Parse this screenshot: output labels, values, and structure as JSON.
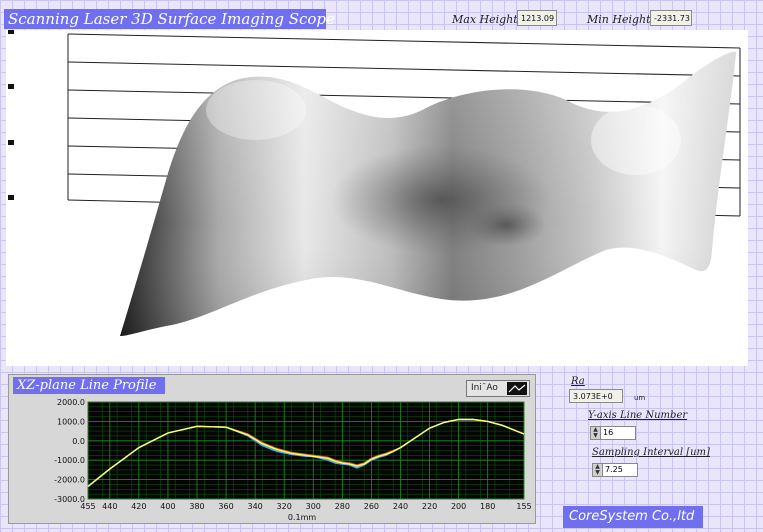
{
  "header": {
    "title": "Scanning Laser 3D  Surface Imaging Scope",
    "max_height_label": "Max Height",
    "max_height_value": "1213.09",
    "min_height_label": "Min Height",
    "min_height_value": "-2331.73"
  },
  "line_profile": {
    "title": "XZ-plane Line Profile",
    "legend_label": "Ini¯Ao"
  },
  "chart_data": {
    "type": "line",
    "xlabel": "0.1mm",
    "ylabel": "",
    "x_ticks": [
      455,
      440,
      420,
      400,
      380,
      360,
      340,
      320,
      300,
      280,
      260,
      240,
      220,
      200,
      180,
      155
    ],
    "y_ticks": [
      "2000.0",
      "1000.0",
      "0.0",
      "-1000.0",
      "-2000.0",
      "-3000.0"
    ],
    "xlim": [
      455,
      155
    ],
    "ylim": [
      -3000,
      2000
    ],
    "grid": true,
    "series": [
      {
        "color": "#ffff66",
        "x": [
          455,
          440,
          420,
          400,
          380,
          360,
          345,
          335,
          325,
          315,
          305,
          300,
          290,
          285,
          280,
          275,
          270,
          265,
          260,
          255,
          250,
          245,
          240,
          230,
          220,
          210,
          200,
          190,
          180,
          170,
          160,
          155
        ],
        "values": [
          -2350,
          -1450,
          -350,
          400,
          750,
          700,
          300,
          -150,
          -450,
          -650,
          -750,
          -800,
          -900,
          -1050,
          -1150,
          -1200,
          -1300,
          -1200,
          -950,
          -800,
          -700,
          -550,
          -350,
          150,
          650,
          950,
          1100,
          1100,
          1000,
          800,
          500,
          350
        ]
      },
      {
        "color": "#4fa3ff",
        "x": [
          455,
          440,
          420,
          400,
          380,
          360,
          345,
          335,
          325,
          315,
          305,
          300,
          290,
          285,
          280,
          275,
          270,
          265,
          260,
          255,
          250,
          245,
          240,
          230,
          220,
          210,
          200,
          190,
          180,
          170,
          160,
          155
        ],
        "values": [
          -2350,
          -1450,
          -350,
          400,
          750,
          700,
          250,
          -250,
          -550,
          -700,
          -800,
          -800,
          -1000,
          -1150,
          -1200,
          -1250,
          -1400,
          -1250,
          -1000,
          -850,
          -750,
          -550,
          -350,
          150,
          650,
          950,
          1100,
          1100,
          1000,
          800,
          500,
          350
        ]
      },
      {
        "color": "#e86a2c",
        "x": [
          455,
          440,
          420,
          400,
          380,
          360,
          345,
          335,
          325,
          315,
          305,
          300,
          290,
          285,
          280,
          275,
          270,
          265,
          260,
          255,
          250,
          245,
          240,
          230,
          220,
          210,
          200,
          190,
          180,
          170,
          160,
          155
        ],
        "values": [
          -2350,
          -1450,
          -350,
          400,
          750,
          700,
          350,
          -100,
          -400,
          -600,
          -700,
          -750,
          -850,
          -1000,
          -1100,
          -1150,
          -1250,
          -1150,
          -900,
          -750,
          -650,
          -500,
          -350,
          150,
          650,
          950,
          1100,
          1100,
          1000,
          800,
          500,
          350
        ]
      },
      {
        "color": "#4cc94c",
        "x": [
          455,
          440,
          420,
          400,
          380,
          360,
          345,
          335,
          325,
          315,
          305,
          300,
          290,
          285,
          280,
          275,
          270,
          265,
          260,
          255,
          250,
          245,
          240,
          230,
          220,
          210,
          200,
          190,
          180,
          170,
          160,
          155
        ],
        "values": [
          -2350,
          -1450,
          -350,
          400,
          750,
          700,
          300,
          -200,
          -500,
          -680,
          -780,
          -820,
          -950,
          -1100,
          -1180,
          -1220,
          -1350,
          -1220,
          -980,
          -820,
          -720,
          -540,
          -350,
          150,
          650,
          950,
          1100,
          1100,
          1000,
          800,
          500,
          350
        ]
      }
    ]
  },
  "stats": {
    "ra_label": "Ra",
    "ra_value": "3.073E+0",
    "ra_unit": "um",
    "y_line_label": "Y-axis Line Number",
    "y_line_value": "16",
    "sampling_label": "Sampling Interval [um]",
    "sampling_value": "7.25"
  },
  "company": "CoreSystem Co.,ltd"
}
